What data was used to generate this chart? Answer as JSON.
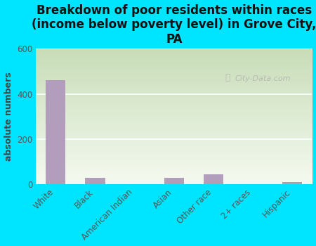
{
  "title": "Breakdown of poor residents within races\n(income below poverty level) in Grove City,\nPA",
  "ylabel": "absolute numbers",
  "categories": [
    "White",
    "Black",
    "American Indian",
    "Asian",
    "Other race",
    "2+ races",
    "Hispanic"
  ],
  "values": [
    460,
    30,
    0,
    28,
    45,
    0,
    10
  ],
  "bar_color": "#b39dbd",
  "background_color": "#00e5ff",
  "plot_bg_top": "#c8ddb8",
  "plot_bg_bottom": "#f5faf0",
  "ylim": [
    0,
    600
  ],
  "yticks": [
    0,
    200,
    400,
    600
  ],
  "watermark": "City-Data.com",
  "title_fontsize": 12,
  "ylabel_fontsize": 9,
  "tick_fontsize": 8.5,
  "grid_color": "#e0e0d0"
}
